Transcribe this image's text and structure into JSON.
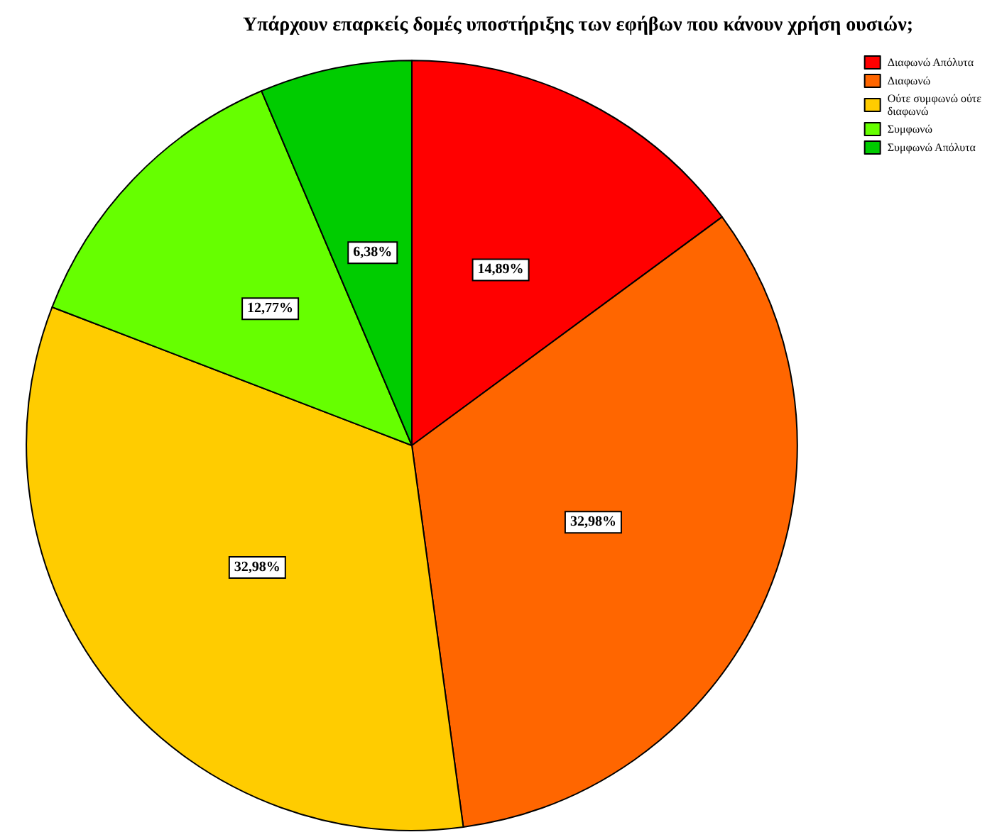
{
  "chart_data": {
    "type": "pie",
    "title": "Υπάρχουν επαρκείς δομές υποστήριξης των εφήβων που κάνουν χρήση ουσιών;",
    "categories": [
      "Διαφωνώ Απόλυτα",
      "Διαφωνώ",
      "Ούτε συμφωνώ ούτε διαφωνώ",
      "Συμφωνώ",
      "Συμφωνώ Απόλυτα"
    ],
    "values": [
      14.89,
      32.98,
      32.98,
      12.77,
      6.38
    ],
    "colors": [
      "#ff0000",
      "#ff6600",
      "#ffcc00",
      "#66ff00",
      "#00cc00"
    ],
    "value_labels": [
      "14,89%",
      "32,98%",
      "32,98%",
      "12,77%",
      "6,38%"
    ],
    "legend": "top right"
  }
}
